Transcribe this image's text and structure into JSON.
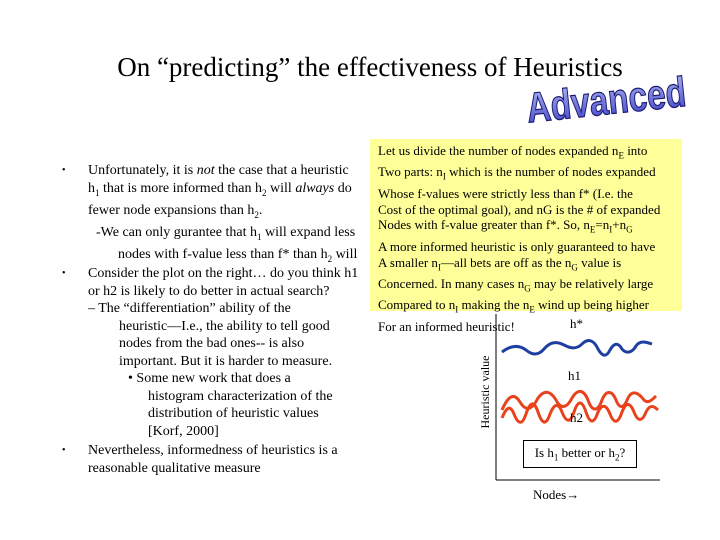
{
  "title": "On “predicting” the effectiveness of Heuristics",
  "wordart": "Advanced",
  "bullets": [
    {
      "lines": [
        "Unfortunately, it is not the case that a heuristic",
        "h1  that is more informed than h2 will always do",
        "fewer node expansions than h2.",
        "-We can only gurantee that h1 will expand less",
        "nodes with f-value less than f* than h2 will"
      ]
    },
    {
      "lines": [
        "Consider the plot on the right… do you think h1",
        "or h2 is likely to do better in actual search?"
      ],
      "sub": [
        "–  The “differentiation” ability of the",
        "heuristic—I.e., the ability to tell good",
        "nodes from the bad ones-- is also",
        "important. But it is harder to measure."
      ],
      "subsub": [
        "•  Some new work that does a",
        "histogram characterization of the",
        "distribution of heuristic values",
        "[Korf, 2000]"
      ]
    },
    {
      "lines": [
        "Nevertheless, informedness of heuristics is a",
        "reasonable qualitative measure"
      ]
    }
  ],
  "note": [
    "Let us divide the number of nodes expanded nE into",
    "Two parts: nI which is the number of nodes expanded",
    "Whose f-values were strictly less than f* (I.e. the",
    "Cost of the optimal goal), and nG is the # of expanded",
    "Nodes with f-value greater than f*. So, nE=nI+nG",
    "A more informed heuristic is only guaranteed to have",
    "A smaller nI—all bets are off as the nG value is",
    "Concerned. In many cases nG may be relatively large",
    "Compared to nI making the nE wind up being higher",
    "For an informed heuristic!"
  ],
  "plot": {
    "y_axis_label": "Heuristic value",
    "x_axis_label": "Nodes→",
    "line_labels": {
      "hstar": "h*",
      "h1": "h1",
      "h2": "h2"
    },
    "question": "Is h1 better or h2?",
    "colors": {
      "hstar": "#1f3fa0",
      "h1": "#000000",
      "h2": "#e8431c"
    }
  }
}
